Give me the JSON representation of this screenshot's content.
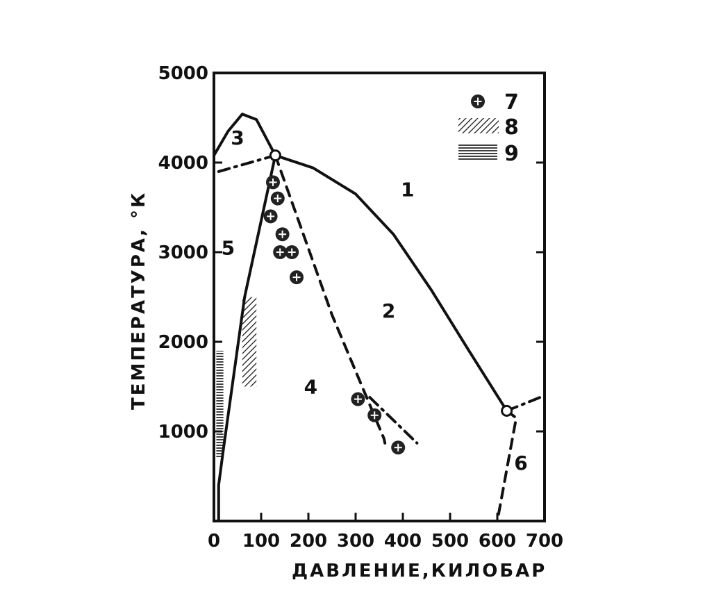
{
  "chart_data": {
    "type": "line",
    "title": "",
    "xlabel": "ДАВЛЕНИЕ,КИЛОБАР",
    "ylabel": "ТЕМПЕРАТУРА, °К",
    "xlim": [
      0,
      700
    ],
    "ylim": [
      0,
      5000
    ],
    "x_ticks": [
      "0",
      "100",
      "200",
      "300",
      "400",
      "500",
      "600",
      "700"
    ],
    "y_ticks": [
      "1000",
      "2000",
      "3000",
      "4000",
      "5000"
    ],
    "grid": false,
    "legend_position": "top-right",
    "curves": [
      {
        "style": "solid",
        "points": [
          [
            0,
            4080
          ],
          [
            30,
            4350
          ],
          [
            60,
            4540
          ],
          [
            90,
            4480
          ],
          [
            120,
            4180
          ],
          [
            130,
            4080
          ]
        ]
      },
      {
        "style": "dash-dot",
        "points": [
          [
            10,
            3900
          ],
          [
            130,
            4080
          ]
        ]
      },
      {
        "style": "solid",
        "points": [
          [
            130,
            4080
          ],
          [
            210,
            3940
          ],
          [
            300,
            3650
          ],
          [
            380,
            3200
          ],
          [
            460,
            2580
          ],
          [
            540,
            1900
          ],
          [
            620,
            1230
          ]
        ]
      },
      {
        "style": "dashed",
        "points": [
          [
            130,
            4080
          ],
          [
            250,
            2300
          ],
          [
            360,
            920
          ],
          [
            362,
            870
          ]
        ]
      },
      {
        "style": "dash-dot",
        "points": [
          [
            330,
            1380
          ],
          [
            430,
            870
          ]
        ]
      },
      {
        "style": "solid",
        "points": [
          [
            130,
            4080
          ],
          [
            65,
            2500
          ],
          [
            20,
            800
          ],
          [
            10,
            400
          ],
          [
            10,
            0
          ]
        ]
      },
      {
        "style": "dash-dot",
        "points": [
          [
            620,
            1230
          ],
          [
            700,
            1400
          ]
        ]
      },
      {
        "style": "dashed",
        "points": [
          [
            620,
            1230
          ],
          [
            640,
            1150
          ],
          [
            600,
            0
          ]
        ]
      }
    ],
    "triple_points": [
      [
        130,
        4080
      ],
      [
        620,
        1230
      ]
    ],
    "series": [
      {
        "name": "7",
        "marker": "circled-plus",
        "points": [
          [
            125,
            3780
          ],
          [
            135,
            3600
          ],
          [
            120,
            3400
          ],
          [
            145,
            3200
          ],
          [
            140,
            3000
          ],
          [
            165,
            3000
          ],
          [
            175,
            2720
          ],
          [
            305,
            1360
          ],
          [
            340,
            1180
          ],
          [
            390,
            820
          ]
        ]
      },
      {
        "name": "8",
        "marker": "diagonal-hatch",
        "x_range": [
          60,
          90
        ],
        "y_range": [
          1500,
          2500
        ]
      },
      {
        "name": "9",
        "marker": "horizontal-hatch",
        "x_range": [
          5,
          20
        ],
        "y_range": [
          700,
          1900
        ]
      }
    ],
    "region_labels": [
      {
        "text": "1",
        "x": 410,
        "y": 3700
      },
      {
        "text": "2",
        "x": 370,
        "y": 2350
      },
      {
        "text": "3",
        "x": 50,
        "y": 4280
      },
      {
        "text": "4",
        "x": 205,
        "y": 1500
      },
      {
        "text": "5",
        "x": 30,
        "y": 3050
      },
      {
        "text": "6",
        "x": 650,
        "y": 650
      }
    ]
  }
}
